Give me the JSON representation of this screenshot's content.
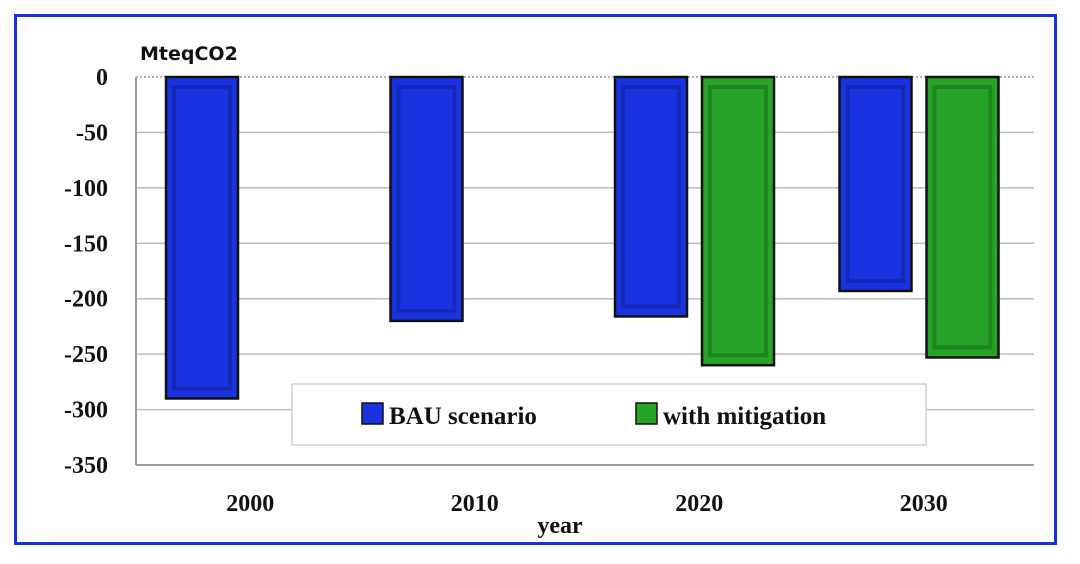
{
  "chart_data": {
    "type": "bar",
    "ylabel": "MteqCO2",
    "xlabel": "year",
    "categories": [
      "2000",
      "2010",
      "2020",
      "2030"
    ],
    "yticks": [
      0,
      -50,
      -100,
      -150,
      -200,
      -250,
      -300,
      -350
    ],
    "ylim": [
      -350,
      0
    ],
    "grid": true,
    "legend_position": "bottom-inside",
    "series": [
      {
        "name": "BAU scenario",
        "color": "#1a33e0",
        "values": [
          -290,
          -220,
          -216,
          -193
        ]
      },
      {
        "name": "with mitigation",
        "color": "#27a327",
        "values": [
          null,
          null,
          -260,
          -253
        ]
      }
    ]
  }
}
